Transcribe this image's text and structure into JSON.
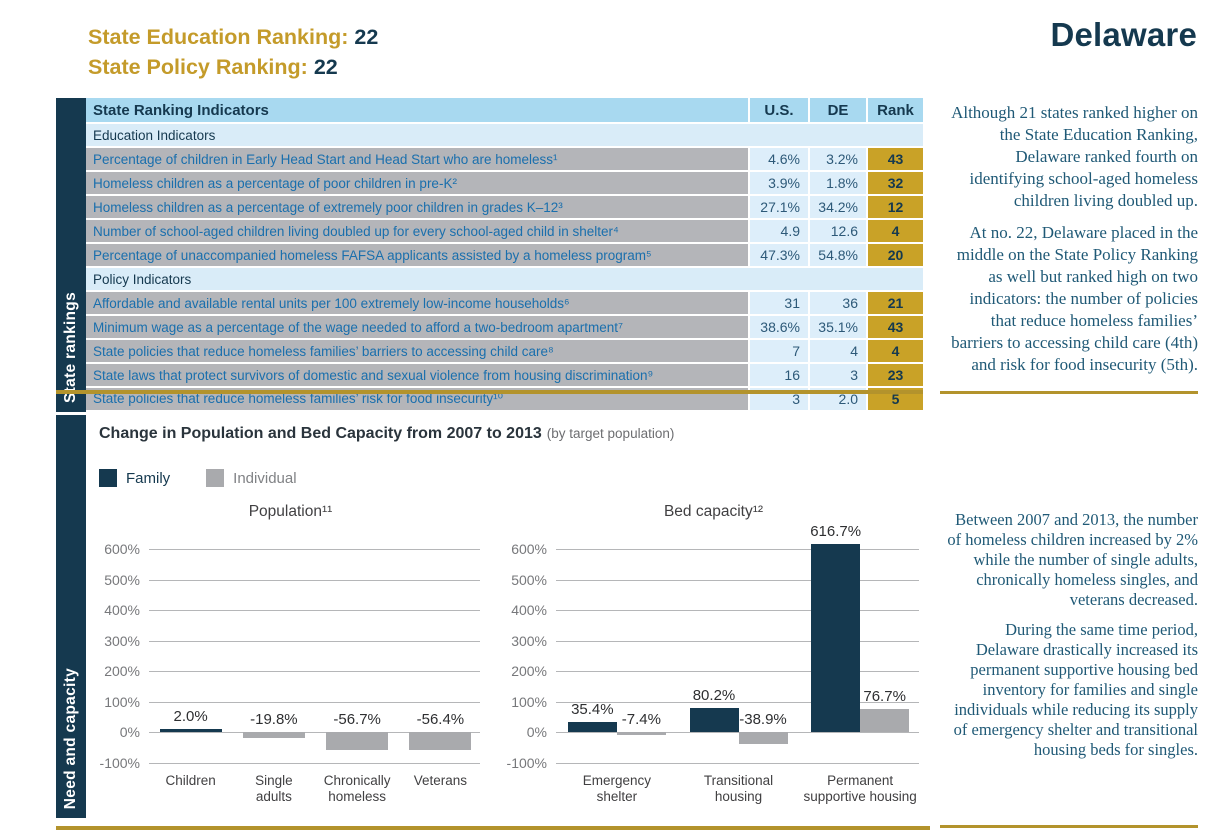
{
  "page": {
    "education_ranking_label": "State Education Ranking:",
    "education_ranking_value": "22",
    "policy_ranking_label": "State Policy Ranking:",
    "policy_ranking_value": "22",
    "state_name": "Delaware"
  },
  "colors": {
    "navy": "#15394f",
    "gold_accent": "#c49b2a",
    "gold_cell": "#c9a227",
    "gold_rule": "#b3932c",
    "table_header_blue": "#a8d9f0",
    "table_subheader_blue": "#d9ecf8",
    "table_gray": "#b4b5b9",
    "table_value_blue": "#ddeefa",
    "bar_gray": "#a9aaad"
  },
  "rankings": {
    "sidebar_label": "State rankings",
    "table": {
      "header": {
        "indicator": "State Ranking Indicators",
        "us": "U.S.",
        "de": "DE",
        "rank": "Rank"
      },
      "education_header": "Education Indicators",
      "education_rows": [
        {
          "indicator": "Percentage of children in Early Head Start and Head Start who are homeless¹",
          "us": "4.6%",
          "de": "3.2%",
          "rank": "43"
        },
        {
          "indicator": "Homeless children as a percentage of poor children in pre-K²",
          "us": "3.9%",
          "de": "1.8%",
          "rank": "32"
        },
        {
          "indicator": "Homeless children as a percentage of extremely poor children in grades K–12³",
          "us": "27.1%",
          "de": "34.2%",
          "rank": "12"
        },
        {
          "indicator": "Number of school-aged children living doubled up for every school-aged child in shelter⁴",
          "us": "4.9",
          "de": "12.6",
          "rank": "4"
        },
        {
          "indicator": "Percentage of unaccompanied homeless FAFSA applicants assisted by a homeless program⁵",
          "us": "47.3%",
          "de": "54.8%",
          "rank": "20"
        }
      ],
      "policy_header": "Policy Indicators",
      "policy_rows": [
        {
          "indicator": "Affordable and available rental units per 100 extremely low-income households⁶",
          "us": "31",
          "de": "36",
          "rank": "21"
        },
        {
          "indicator": "Minimum wage as a percentage of the wage needed to afford a two-bedroom apartment⁷",
          "us": "38.6%",
          "de": "35.1%",
          "rank": "43"
        },
        {
          "indicator": "State policies that reduce homeless families’ barriers to accessing child care⁸",
          "us": "7",
          "de": "4",
          "rank": "4"
        },
        {
          "indicator": "State laws that protect survivors of domestic and sexual violence from housing discrimination⁹",
          "us": "16",
          "de": "3",
          "rank": "23"
        },
        {
          "indicator": "State policies that reduce homeless families’ risk for food insecurity¹⁰",
          "us": "3",
          "de": "2.0",
          "rank": "5"
        }
      ]
    },
    "notes": [
      "Although 21 states ranked higher on the State Education Ranking, Delaware ranked fourth on identifying school-aged homeless children living doubled up.",
      "At no. 22, Delaware placed in the middle on the State Policy Ranking as well but ranked high on two indicators: the number of policies that reduce homeless families’ barriers to accessing child care (4th) and risk for food insecurity (5th)."
    ]
  },
  "capacity": {
    "sidebar_label": "Need and capacity",
    "title": "Change in Population and Bed Capacity from 2007 to 2013",
    "title_suffix": "(by target population)",
    "notes": [
      "Between 2007 and 2013, the number of homeless children increased by 2% while the number of single adults, chronically homeless singles, and veterans decreased.",
      "During the same time period, Delaware drastically increased its permanent supportive housing bed inventory for families and single individuals while reducing its supply of emergency shelter and transitional housing beds for singles."
    ]
  },
  "chart_legend": [
    {
      "label": "Family",
      "color": "#15394f"
    },
    {
      "label": "Individual",
      "color": "#a9aaad"
    }
  ],
  "chart_data": [
    {
      "type": "bar",
      "title": "Population¹¹",
      "ylim": [
        -100,
        600
      ],
      "yticks": [
        "600%",
        "500%",
        "400%",
        "300%",
        "200%",
        "100%",
        "0%",
        "-100%"
      ],
      "grid": true,
      "legend_position": "top-left",
      "groups": [
        {
          "category": "Children",
          "bars": [
            {
              "series": "Family",
              "value": 2.0,
              "label": "2.0%"
            }
          ]
        },
        {
          "category": "Single\nadults",
          "bars": [
            {
              "series": "Individual",
              "value": -19.8,
              "label": "-19.8%"
            }
          ]
        },
        {
          "category": "Chronically\nhomeless",
          "bars": [
            {
              "series": "Individual",
              "value": -56.7,
              "label": "-56.7%"
            }
          ]
        },
        {
          "category": "Veterans",
          "bars": [
            {
              "series": "Individual",
              "value": -56.4,
              "label": "-56.4%"
            }
          ]
        }
      ]
    },
    {
      "type": "bar",
      "title": "Bed capacity¹²",
      "ylim": [
        -100,
        600
      ],
      "yticks": [
        "600%",
        "500%",
        "400%",
        "300%",
        "200%",
        "100%",
        "0%",
        "-100%"
      ],
      "grid": true,
      "legend_position": "top-left",
      "groups": [
        {
          "category": "Emergency\nshelter",
          "bars": [
            {
              "series": "Family",
              "value": 35.4,
              "label": "35.4%"
            },
            {
              "series": "Individual",
              "value": -7.4,
              "label": "-7.4%"
            }
          ]
        },
        {
          "category": "Transitional\nhousing",
          "bars": [
            {
              "series": "Family",
              "value": 80.2,
              "label": "80.2%"
            },
            {
              "series": "Individual",
              "value": -38.9,
              "label": "-38.9%"
            }
          ]
        },
        {
          "category": "Permanent\nsupportive housing",
          "bars": [
            {
              "series": "Family",
              "value": 616.7,
              "label": "616.7%"
            },
            {
              "series": "Individual",
              "value": 76.7,
              "label": "76.7%"
            }
          ]
        }
      ]
    }
  ]
}
